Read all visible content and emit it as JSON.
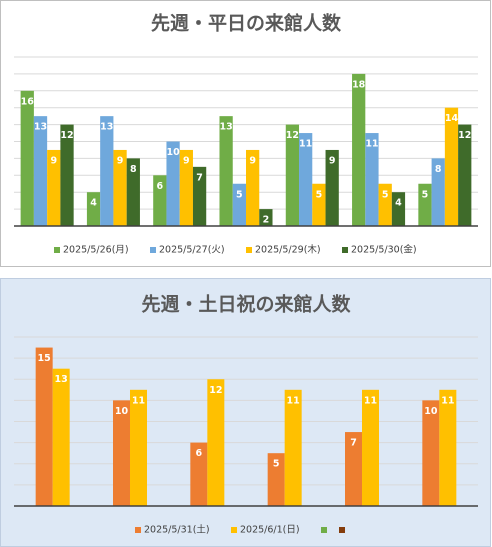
{
  "chart_data": [
    {
      "type": "bar",
      "title": "先週・平日の来館人数",
      "categories": [
        null,
        null,
        null,
        null,
        null,
        null,
        null
      ],
      "series": [
        {
          "name": "2025/5/26(月)",
          "color": "#70ad47",
          "values": [
            16,
            4,
            6,
            13,
            12,
            18,
            5
          ]
        },
        {
          "name": "2025/5/27(火)",
          "color": "#6fa8dc",
          "values": [
            13,
            13,
            10,
            5,
            11,
            11,
            8
          ]
        },
        {
          "name": "2025/5/29(木)",
          "color": "#ffc000",
          "values": [
            9,
            9,
            9,
            9,
            5,
            5,
            14
          ]
        },
        {
          "name": "2025/5/30(金)",
          "color": "#3f6b2a",
          "values": [
            12,
            8,
            7,
            2,
            9,
            4,
            12
          ]
        }
      ],
      "ylim": [
        0,
        20
      ],
      "yticks": [
        0,
        2,
        4,
        6,
        8,
        10,
        12,
        14,
        16,
        18,
        20
      ],
      "grid": true,
      "legend": "bottom"
    },
    {
      "type": "bar",
      "title": "先週・土日祝の来館人数",
      "categories": [
        null,
        null,
        null,
        null,
        null,
        null
      ],
      "series": [
        {
          "name": "2025/5/31(土)",
          "color": "#ed7d31",
          "values": [
            15,
            10,
            6,
            5,
            7,
            10
          ]
        },
        {
          "name": "2025/6/1(日)",
          "color": "#ffc000",
          "values": [
            13,
            11,
            12,
            11,
            11,
            11
          ]
        },
        {
          "name": null,
          "color": "#70ad47",
          "values": [
            null,
            null,
            null,
            null,
            null,
            null
          ]
        },
        {
          "name": null,
          "color": "#843c0c",
          "values": [
            null,
            null,
            null,
            null,
            null,
            null
          ]
        }
      ],
      "ylim": [
        0,
        16
      ],
      "yticks": [
        0,
        2,
        4,
        6,
        8,
        10,
        12,
        14,
        16
      ],
      "grid": true,
      "legend": "bottom"
    }
  ]
}
